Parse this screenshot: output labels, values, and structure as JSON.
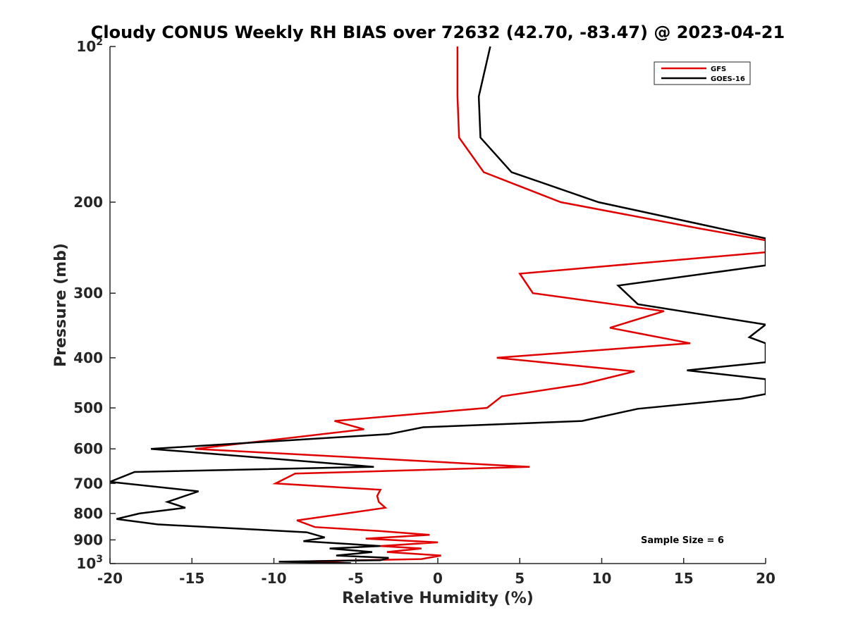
{
  "chart_data": {
    "type": "line",
    "title": "Cloudy CONUS Weekly RH BIAS over 72632 (42.70, -83.47) @ 2023-04-21",
    "xlabel": "Relative Humidity (%)",
    "ylabel": "Pressure (mb)",
    "xlim": [
      -20,
      20
    ],
    "ylim": [
      100,
      1000
    ],
    "y_scale": "log",
    "y_reversed": true,
    "grid": false,
    "legend_position": "top-right",
    "x_ticks": [
      -20,
      -15,
      -10,
      -5,
      0,
      5,
      10,
      15,
      20
    ],
    "x_tick_labels": [
      "-20",
      "-15",
      "-10",
      "-5",
      "0",
      "5",
      "10",
      "15",
      "20"
    ],
    "y_ticks": [
      100,
      200,
      300,
      400,
      500,
      600,
      700,
      800,
      900,
      1000
    ],
    "y_tick_labels": [
      {
        "base": "10",
        "sup": "2"
      },
      {
        "base": "200",
        "sup": ""
      },
      {
        "base": "300",
        "sup": ""
      },
      {
        "base": "400",
        "sup": ""
      },
      {
        "base": "500",
        "sup": ""
      },
      {
        "base": "600",
        "sup": ""
      },
      {
        "base": "700",
        "sup": ""
      },
      {
        "base": "800",
        "sup": ""
      },
      {
        "base": "900",
        "sup": ""
      },
      {
        "base": "10",
        "sup": "3"
      }
    ],
    "annotation": "Sample Size = 6",
    "series": [
      {
        "name": "GFS",
        "color": "#e00000",
        "points": [
          {
            "x": 1.2,
            "y": 100
          },
          {
            "x": 1.2,
            "y": 125
          },
          {
            "x": 1.3,
            "y": 150
          },
          {
            "x": 2.8,
            "y": 175
          },
          {
            "x": 7.5,
            "y": 200
          },
          {
            "x": 16,
            "y": 225
          },
          {
            "x": 20,
            "y": 237
          },
          {
            "x": 20,
            "y": 250
          },
          {
            "x": 5,
            "y": 275
          },
          {
            "x": 5.8,
            "y": 300
          },
          {
            "x": 13.8,
            "y": 325
          },
          {
            "x": 10.5,
            "y": 350
          },
          {
            "x": 15.4,
            "y": 375
          },
          {
            "x": 3.6,
            "y": 400
          },
          {
            "x": 12,
            "y": 425
          },
          {
            "x": 8.8,
            "y": 450
          },
          {
            "x": 3.9,
            "y": 475
          },
          {
            "x": 3,
            "y": 500
          },
          {
            "x": -6.3,
            "y": 530
          },
          {
            "x": -4.5,
            "y": 550
          },
          {
            "x": -14.8,
            "y": 600
          },
          {
            "x": 5.6,
            "y": 650
          },
          {
            "x": -8.7,
            "y": 670
          },
          {
            "x": -9.9,
            "y": 700
          },
          {
            "x": -3.5,
            "y": 720
          },
          {
            "x": -3.7,
            "y": 740
          },
          {
            "x": -3.6,
            "y": 760
          },
          {
            "x": -3.2,
            "y": 780
          },
          {
            "x": -5.6,
            "y": 800
          },
          {
            "x": -8.6,
            "y": 825
          },
          {
            "x": -7.5,
            "y": 850
          },
          {
            "x": -3.6,
            "y": 865
          },
          {
            "x": -0.5,
            "y": 880
          },
          {
            "x": -4.4,
            "y": 895
          },
          {
            "x": 0,
            "y": 910
          },
          {
            "x": -3.5,
            "y": 925
          },
          {
            "x": -1,
            "y": 935
          },
          {
            "x": -3.1,
            "y": 950
          },
          {
            "x": 0.2,
            "y": 965
          },
          {
            "x": -1,
            "y": 980
          },
          {
            "x": -7.8,
            "y": 990
          },
          {
            "x": -5.5,
            "y": 998
          }
        ]
      },
      {
        "name": "GOES-16",
        "color": "#000000",
        "points": [
          {
            "x": 3.2,
            "y": 100
          },
          {
            "x": 2.5,
            "y": 125
          },
          {
            "x": 2.6,
            "y": 150
          },
          {
            "x": 4.5,
            "y": 175
          },
          {
            "x": 9.8,
            "y": 200
          },
          {
            "x": 20,
            "y": 235
          },
          {
            "x": 20,
            "y": 265
          },
          {
            "x": 11,
            "y": 290
          },
          {
            "x": 12.2,
            "y": 315
          },
          {
            "x": 20,
            "y": 345
          },
          {
            "x": 19,
            "y": 365
          },
          {
            "x": 20,
            "y": 375
          },
          {
            "x": 20,
            "y": 408
          },
          {
            "x": 15.2,
            "y": 423
          },
          {
            "x": 20,
            "y": 440
          },
          {
            "x": 20,
            "y": 470
          },
          {
            "x": 18.5,
            "y": 480
          },
          {
            "x": 12.2,
            "y": 502
          },
          {
            "x": 8.8,
            "y": 530
          },
          {
            "x": -0.9,
            "y": 545
          },
          {
            "x": -3,
            "y": 562
          },
          {
            "x": -17.5,
            "y": 600
          },
          {
            "x": -3.9,
            "y": 650
          },
          {
            "x": -18.5,
            "y": 665
          },
          {
            "x": -20,
            "y": 695
          },
          {
            "x": -14.6,
            "y": 725
          },
          {
            "x": -16.5,
            "y": 760
          },
          {
            "x": -15.4,
            "y": 780
          },
          {
            "x": -18.2,
            "y": 800
          },
          {
            "x": -19.6,
            "y": 820
          },
          {
            "x": -17.1,
            "y": 840
          },
          {
            "x": -8,
            "y": 870
          },
          {
            "x": -6.9,
            "y": 890
          },
          {
            "x": -8.2,
            "y": 905
          },
          {
            "x": -3.5,
            "y": 925
          },
          {
            "x": -6.6,
            "y": 935
          },
          {
            "x": -4,
            "y": 950
          },
          {
            "x": -6.2,
            "y": 965
          },
          {
            "x": -3,
            "y": 975
          },
          {
            "x": -3.5,
            "y": 985
          },
          {
            "x": -9.7,
            "y": 992
          },
          {
            "x": -5.3,
            "y": 998
          }
        ]
      }
    ]
  }
}
